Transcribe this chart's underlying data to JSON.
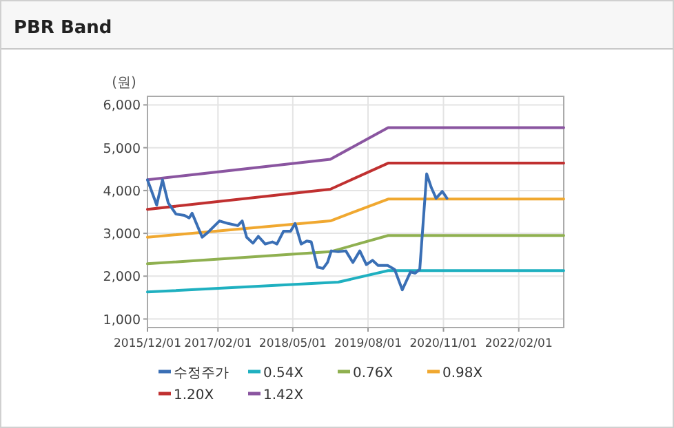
{
  "chart_data": {
    "type": "line",
    "title": "PBR Band",
    "ylabel": "(원)",
    "xlim": [
      "2015-12-01",
      "2022-11-01"
    ],
    "xticks": [
      {
        "value": "2015-12-01",
        "label": "2015/12/01"
      },
      {
        "value": "2017-02-01",
        "label": "2017/02/01"
      },
      {
        "value": "2018-05-01",
        "label": "2018/05/01"
      },
      {
        "value": "2019-08-01",
        "label": "2019/08/01"
      },
      {
        "value": "2020-11-01",
        "label": "2020/11/01"
      },
      {
        "value": "2022-02-01",
        "label": "2022/02/01"
      }
    ],
    "ylim": [
      800,
      6200
    ],
    "yticks": [
      {
        "value": 1000,
        "label": "1,000"
      },
      {
        "value": 2000,
        "label": "2,000"
      },
      {
        "value": 3000,
        "label": "3,000"
      },
      {
        "value": 4000,
        "label": "4,000"
      },
      {
        "value": 5000,
        "label": "5,000"
      },
      {
        "value": 6000,
        "label": "6,000"
      }
    ],
    "grid": true,
    "legend": "bottom",
    "line_style": "solid",
    "marker": "none",
    "series": [
      {
        "name": "수정주가",
        "color": "#3a6fb5",
        "x": [
          "2015-12-01",
          "2016-01-26",
          "2016-03-01",
          "2016-04-05",
          "2016-05-22",
          "2016-07-12",
          "2016-08-10",
          "2016-08-28",
          "2016-10-28",
          "2016-12-01",
          "2017-02-10",
          "2017-04-04",
          "2017-06-01",
          "2017-06-28",
          "2017-07-25",
          "2017-09-01",
          "2017-10-04",
          "2017-11-15",
          "2017-12-28",
          "2018-01-25",
          "2018-03-06",
          "2018-04-18",
          "2018-05-15",
          "2018-06-21",
          "2018-07-25",
          "2018-08-21",
          "2018-09-28",
          "2018-11-01",
          "2018-11-28",
          "2018-12-21",
          "2019-02-01",
          "2019-03-19",
          "2019-05-01",
          "2019-06-12",
          "2019-07-22",
          "2019-08-28",
          "2019-10-01",
          "2019-11-28",
          "2020-01-09",
          "2020-02-25",
          "2020-04-15",
          "2020-05-13",
          "2020-06-10",
          "2020-07-22",
          "2020-08-19",
          "2020-09-17",
          "2020-10-25",
          "2020-11-22"
        ],
        "values": [
          4250,
          3660,
          4250,
          3710,
          3450,
          3420,
          3360,
          3470,
          2910,
          3020,
          3290,
          3230,
          3180,
          3290,
          2910,
          2770,
          2930,
          2750,
          2800,
          2750,
          3050,
          3050,
          3230,
          2750,
          2820,
          2800,
          2210,
          2180,
          2320,
          2590,
          2570,
          2590,
          2320,
          2590,
          2270,
          2370,
          2250,
          2250,
          2160,
          1680,
          2100,
          2070,
          2160,
          4390,
          4070,
          3820,
          3980,
          3820
        ]
      },
      {
        "name": "0.54X",
        "color": "#1fb0c0",
        "x": [
          "2015-12-01",
          "2019-02-01",
          "2019-12-01",
          "2022-11-01"
        ],
        "values": [
          1630,
          1860,
          2130,
          2130
        ]
      },
      {
        "name": "0.76X",
        "color": "#8fb050",
        "x": [
          "2015-12-01",
          "2018-12-15",
          "2019-12-01",
          "2022-11-01"
        ],
        "values": [
          2290,
          2570,
          2950,
          2950
        ]
      },
      {
        "name": "0.98X",
        "color": "#f0a830",
        "x": [
          "2015-12-01",
          "2018-12-15",
          "2019-12-01",
          "2022-11-01"
        ],
        "values": [
          2910,
          3290,
          3800,
          3800
        ]
      },
      {
        "name": "1.20X",
        "color": "#c03030",
        "x": [
          "2015-12-01",
          "2018-12-15",
          "2019-12-01",
          "2022-11-01"
        ],
        "values": [
          3560,
          4030,
          4640,
          4640
        ]
      },
      {
        "name": "1.42X",
        "color": "#8a55a0",
        "x": [
          "2015-12-01",
          "2018-12-15",
          "2019-12-01",
          "2022-11-01"
        ],
        "values": [
          4250,
          4730,
          5470,
          5470
        ]
      }
    ]
  }
}
